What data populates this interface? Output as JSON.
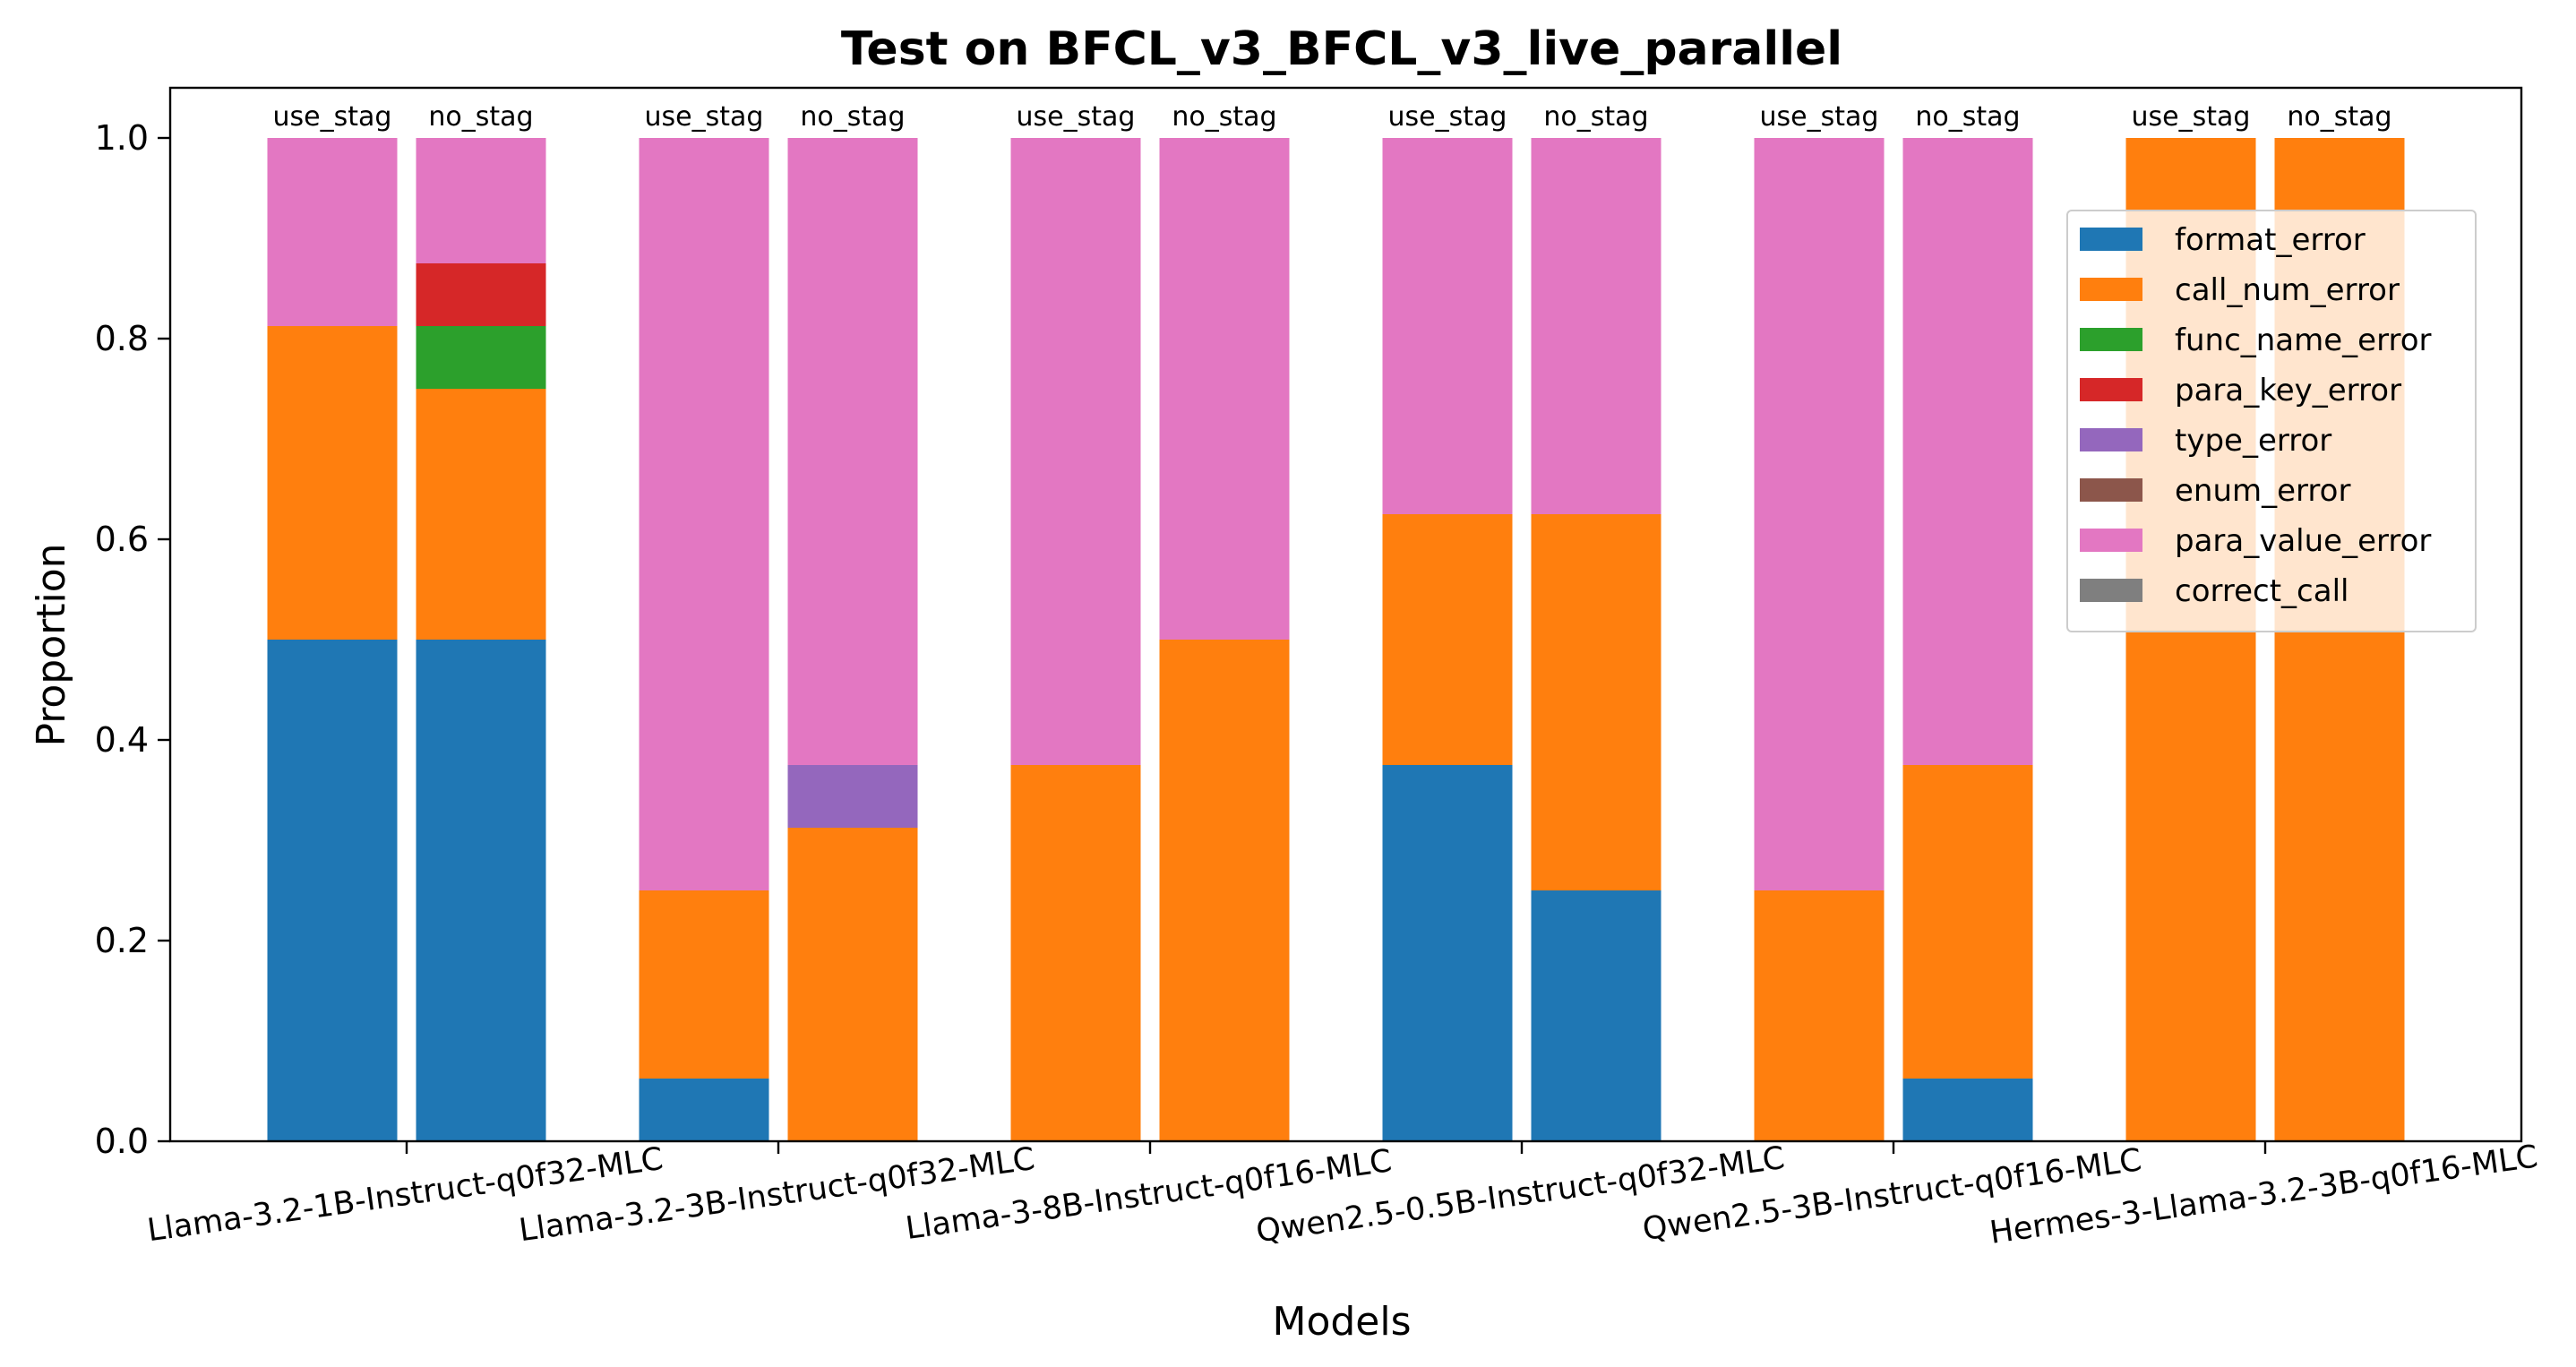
{
  "chart_data": {
    "type": "bar",
    "stacked": true,
    "title": "Test on BFCL_v3_BFCL_v3_live_parallel",
    "xlabel": "Models",
    "ylabel": "Proportion",
    "ylim": [
      0,
      1.05
    ],
    "yticks": [
      "0.0",
      "0.2",
      "0.4",
      "0.6",
      "0.8",
      "1.0"
    ],
    "grid": false,
    "legend_position": "right",
    "categories": [
      "Llama-3.2-1B-Instruct-q0f32-MLC",
      "Llama-3.2-3B-Instruct-q0f32-MLC",
      "Llama-3-8B-Instruct-q0f16-MLC",
      "Qwen2.5-0.5B-Instruct-q0f32-MLC",
      "Qwen2.5-3B-Instruct-q0f16-MLC",
      "Hermes-3-Llama-3.2-3B-q0f16-MLC"
    ],
    "variants": [
      "use_stag",
      "no_stag"
    ],
    "series": [
      {
        "name": "format_error",
        "color": "#1f77b4",
        "values": [
          [
            0.5,
            0.5
          ],
          [
            0.0625,
            0.0
          ],
          [
            0.0,
            0.0
          ],
          [
            0.375,
            0.25
          ],
          [
            0.0,
            0.0625
          ],
          [
            0.0,
            0.0
          ]
        ]
      },
      {
        "name": "call_num_error",
        "color": "#ff7f0e",
        "values": [
          [
            0.3125,
            0.25
          ],
          [
            0.1875,
            0.3125
          ],
          [
            0.375,
            0.5
          ],
          [
            0.25,
            0.375
          ],
          [
            0.25,
            0.3125
          ],
          [
            1.0,
            1.0
          ]
        ]
      },
      {
        "name": "func_name_error",
        "color": "#2ca02c",
        "values": [
          [
            0.0,
            0.0625
          ],
          [
            0.0,
            0.0
          ],
          [
            0.0,
            0.0
          ],
          [
            0.0,
            0.0
          ],
          [
            0.0,
            0.0
          ],
          [
            0.0,
            0.0
          ]
        ]
      },
      {
        "name": "para_key_error",
        "color": "#d62728",
        "values": [
          [
            0.0,
            0.0625
          ],
          [
            0.0,
            0.0
          ],
          [
            0.0,
            0.0
          ],
          [
            0.0,
            0.0
          ],
          [
            0.0,
            0.0
          ],
          [
            0.0,
            0.0
          ]
        ]
      },
      {
        "name": "type_error",
        "color": "#9467bd",
        "values": [
          [
            0.0,
            0.0
          ],
          [
            0.0,
            0.0625
          ],
          [
            0.0,
            0.0
          ],
          [
            0.0,
            0.0
          ],
          [
            0.0,
            0.0
          ],
          [
            0.0,
            0.0
          ]
        ]
      },
      {
        "name": "enum_error",
        "color": "#8c564b",
        "values": [
          [
            0.0,
            0.0
          ],
          [
            0.0,
            0.0
          ],
          [
            0.0,
            0.0
          ],
          [
            0.0,
            0.0
          ],
          [
            0.0,
            0.0
          ],
          [
            0.0,
            0.0
          ]
        ]
      },
      {
        "name": "para_value_error",
        "color": "#e377c2",
        "values": [
          [
            0.1875,
            0.125
          ],
          [
            0.75,
            0.625
          ],
          [
            0.625,
            0.5
          ],
          [
            0.375,
            0.375
          ],
          [
            0.75,
            0.625
          ],
          [
            0.0,
            0.0
          ]
        ]
      },
      {
        "name": "correct_call",
        "color": "#7f7f7f",
        "values": [
          [
            0.0,
            0.0
          ],
          [
            0.0,
            0.0
          ],
          [
            0.0,
            0.0
          ],
          [
            0.0,
            0.0
          ],
          [
            0.0,
            0.0
          ],
          [
            0.0,
            0.0
          ]
        ]
      }
    ]
  }
}
